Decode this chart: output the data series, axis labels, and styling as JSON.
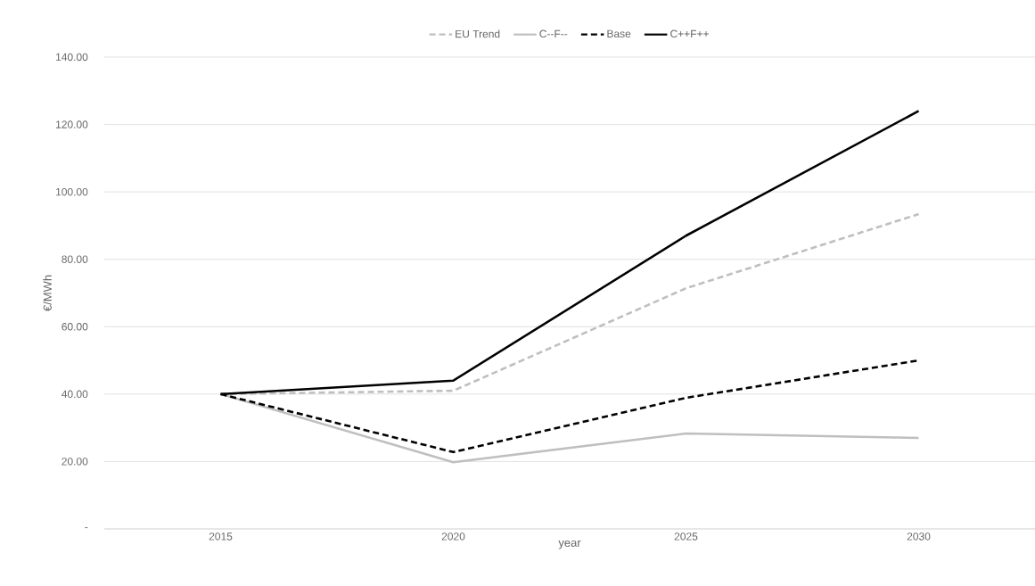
{
  "chart_data": {
    "type": "line",
    "xlabel": "year",
    "ylabel": "€/MWh",
    "categories": [
      "2015",
      "2020",
      "2025",
      "2030"
    ],
    "ylim": [
      0,
      140
    ],
    "yticks": [
      {
        "value": 0,
        "label": "-"
      },
      {
        "value": 20,
        "label": "20.00"
      },
      {
        "value": 40,
        "label": "40.00"
      },
      {
        "value": 60,
        "label": "60.00"
      },
      {
        "value": 80,
        "label": "80.00"
      },
      {
        "value": 100,
        "label": "100.00"
      },
      {
        "value": 120,
        "label": "120.00"
      },
      {
        "value": 140,
        "label": "140.00"
      }
    ],
    "grid": "y",
    "legend": "top",
    "series": [
      {
        "name": "EU Trend",
        "color": "#bfbfbf",
        "line_style": "dashed",
        "values": [
          40,
          41,
          71.4,
          93.4
        ]
      },
      {
        "name": "C--F--",
        "color": "#bfbfbf",
        "line_style": "solid",
        "values": [
          40,
          19.8,
          28.3,
          27
        ]
      },
      {
        "name": "Base",
        "color": "#000000",
        "line_style": "dashed",
        "values": [
          40,
          22.8,
          38.9,
          50
        ]
      },
      {
        "name": "C++F++",
        "color": "#000000",
        "line_style": "solid",
        "values": [
          40,
          44,
          87,
          124
        ]
      }
    ]
  }
}
